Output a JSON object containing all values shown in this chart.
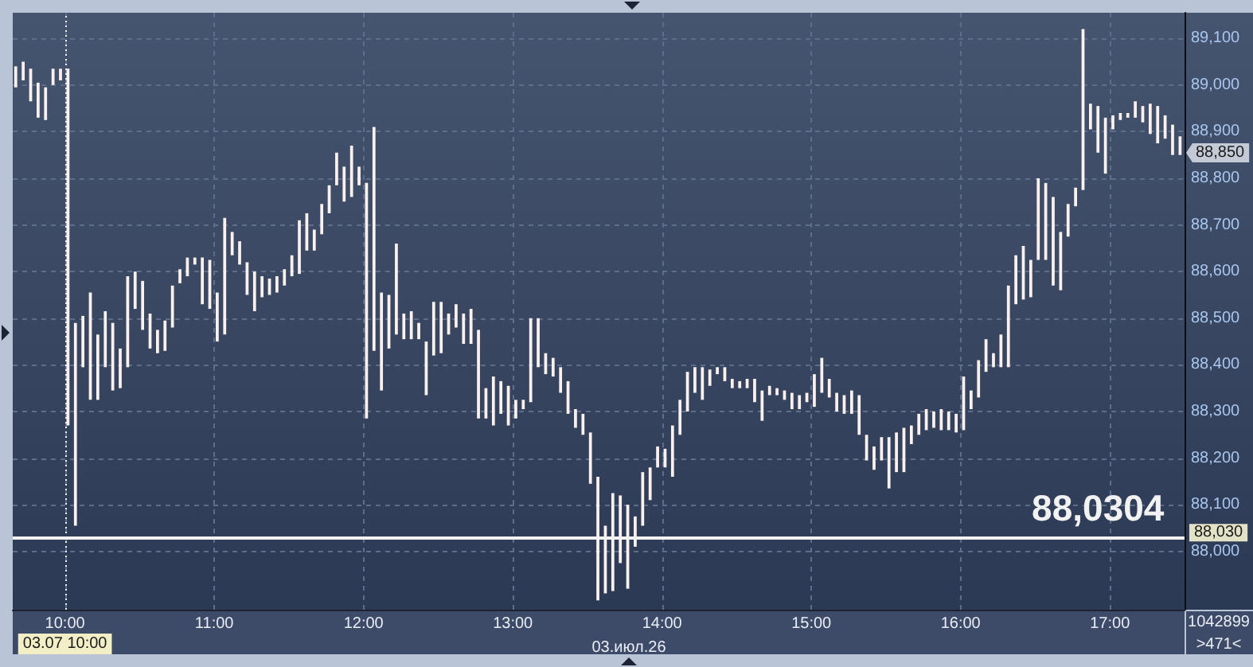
{
  "chart_data": {
    "type": "bar",
    "xlabel": "03.июл.26",
    "x": [
      9.67,
      9.72,
      9.77,
      9.82,
      9.87,
      9.92,
      9.97,
      10.02,
      10.07,
      10.12,
      10.17,
      10.22,
      10.27,
      10.32,
      10.37,
      10.42,
      10.47,
      10.52,
      10.57,
      10.62,
      10.67,
      10.72,
      10.77,
      10.82,
      10.87,
      10.92,
      10.97,
      11.02,
      11.07,
      11.12,
      11.17,
      11.22,
      11.27,
      11.32,
      11.37,
      11.42,
      11.47,
      11.52,
      11.57,
      11.62,
      11.67,
      11.72,
      11.77,
      11.82,
      11.87,
      11.92,
      11.97,
      12.02,
      12.07,
      12.12,
      12.17,
      12.22,
      12.27,
      12.32,
      12.37,
      12.42,
      12.47,
      12.52,
      12.57,
      12.62,
      12.67,
      12.72,
      12.77,
      12.82,
      12.87,
      12.92,
      12.97,
      13.02,
      13.07,
      13.12,
      13.17,
      13.22,
      13.27,
      13.32,
      13.37,
      13.42,
      13.47,
      13.52,
      13.57,
      13.62,
      13.67,
      13.72,
      13.77,
      13.82,
      13.87,
      13.92,
      13.97,
      14.02,
      14.07,
      14.12,
      14.17,
      14.22,
      14.27,
      14.32,
      14.37,
      14.42,
      14.47,
      14.52,
      14.57,
      14.62,
      14.67,
      14.72,
      14.77,
      14.82,
      14.87,
      14.92,
      14.97,
      15.02,
      15.07,
      15.12,
      15.17,
      15.22,
      15.27,
      15.32,
      15.37,
      15.42,
      15.47,
      15.52,
      15.57,
      15.62,
      15.67,
      15.72,
      15.77,
      15.82,
      15.87,
      15.92,
      15.97,
      16.02,
      16.07,
      16.12,
      16.17,
      16.22,
      16.27,
      16.32,
      16.37,
      16.42,
      16.47,
      16.52,
      16.57,
      16.62,
      16.67,
      16.72,
      16.77,
      16.82,
      16.87,
      16.92,
      16.97,
      17.02,
      17.07,
      17.12,
      17.17,
      17.22,
      17.27,
      17.32,
      17.37,
      17.42,
      17.47
    ],
    "base": [
      88995,
      89010,
      88965,
      88930,
      88925,
      89000,
      89010,
      88270,
      88055,
      88395,
      88325,
      88325,
      88395,
      88345,
      88350,
      88395,
      88520,
      88475,
      88435,
      88425,
      88430,
      88480,
      88575,
      88590,
      88615,
      88530,
      88520,
      88450,
      88465,
      88635,
      88615,
      88550,
      88515,
      88545,
      88550,
      88555,
      88570,
      88590,
      88595,
      88645,
      88645,
      88680,
      88725,
      88785,
      88750,
      88760,
      88785,
      88285,
      88430,
      88345,
      88435,
      88465,
      88455,
      88455,
      88455,
      88335,
      88420,
      88425,
      88465,
      88480,
      88445,
      88445,
      88285,
      88285,
      88270,
      88295,
      88270,
      88285,
      88305,
      88320,
      88395,
      88380,
      88375,
      88340,
      88295,
      88265,
      88250,
      88145,
      87895,
      87910,
      87915,
      87975,
      87920,
      88010,
      88055,
      88110,
      88180,
      88180,
      88160,
      88250,
      88300,
      88340,
      88325,
      88355,
      88380,
      88365,
      88350,
      88350,
      88350,
      88320,
      88280,
      88335,
      88335,
      88325,
      88305,
      88305,
      88320,
      88310,
      88340,
      88330,
      88300,
      88295,
      88295,
      88250,
      88195,
      88175,
      88195,
      88135,
      88170,
      88170,
      88230,
      88250,
      88260,
      88265,
      88260,
      88260,
      88255,
      88260,
      88305,
      88330,
      88385,
      88395,
      88395,
      88395,
      88530,
      88540,
      88545,
      88625,
      88625,
      88570,
      88560,
      88675,
      88740,
      88775,
      88905,
      88855,
      88810,
      88905,
      88925,
      88930,
      88930,
      88920,
      88895,
      88875,
      88885,
      88850,
      88850
    ],
    "values": [
      45,
      40,
      70,
      75,
      70,
      35,
      25,
      765,
      435,
      110,
      230,
      140,
      120,
      145,
      85,
      195,
      80,
      105,
      75,
      50,
      65,
      90,
      30,
      40,
      15,
      100,
      105,
      105,
      250,
      50,
      50,
      70,
      85,
      45,
      35,
      35,
      35,
      45,
      115,
      80,
      45,
      65,
      60,
      70,
      75,
      110,
      40,
      505,
      480,
      210,
      115,
      195,
      55,
      60,
      35,
      115,
      115,
      110,
      45,
      50,
      65,
      75,
      190,
      65,
      105,
      70,
      85,
      40,
      20,
      180,
      105,
      45,
      40,
      55,
      70,
      40,
      45,
      110,
      265,
      145,
      210,
      145,
      180,
      65,
      115,
      70,
      45,
      40,
      110,
      75,
      85,
      55,
      70,
      35,
      15,
      30,
      20,
      15,
      20,
      50,
      65,
      20,
      15,
      20,
      35,
      30,
      20,
      70,
      75,
      40,
      40,
      40,
      50,
      85,
      55,
      50,
      50,
      110,
      85,
      95,
      40,
      45,
      45,
      35,
      45,
      40,
      40,
      115,
      40,
      80,
      70,
      30,
      70,
      175,
      105,
      115,
      80,
      175,
      165,
      190,
      125,
      70,
      40,
      345,
      55,
      100,
      120,
      30,
      15,
      10,
      35,
      35,
      65,
      80,
      50,
      65,
      40
    ],
    "color": "#fdf1ee",
    "xlim": [
      9.65,
      17.5
    ],
    "xticks": [
      {
        "value": 10,
        "label": "10:00"
      },
      {
        "value": 11,
        "label": "11:00"
      },
      {
        "value": 12,
        "label": "12:00"
      },
      {
        "value": 13,
        "label": "13:00"
      },
      {
        "value": 14,
        "label": "14:00"
      },
      {
        "value": 15,
        "label": "15:00"
      },
      {
        "value": 16,
        "label": "16:00"
      },
      {
        "value": 17,
        "label": "17:00"
      }
    ],
    "ylim": [
      87875,
      89155
    ],
    "yticks": [
      {
        "value": 88000,
        "label": "88,000"
      },
      {
        "value": 88100,
        "label": "88,100"
      },
      {
        "value": 88200,
        "label": "88,200"
      },
      {
        "value": 88300,
        "label": "88,300"
      },
      {
        "value": 88400,
        "label": "88,400"
      },
      {
        "value": 88500,
        "label": "88,500"
      },
      {
        "value": 88600,
        "label": "88,600"
      },
      {
        "value": 88700,
        "label": "88,700"
      },
      {
        "value": 88800,
        "label": "88,800"
      },
      {
        "value": 88900,
        "label": "88,900"
      },
      {
        "value": 89000,
        "label": "89,000"
      },
      {
        "value": 89100,
        "label": "89,100"
      }
    ],
    "grid": true,
    "ref_lines": [
      {
        "axis": "y",
        "value": 88030,
        "label": "88,030",
        "color": "#f2f2f2",
        "line_style": "solid"
      },
      {
        "axis": "x",
        "value": 10,
        "label": "03.07 10:00",
        "color": "#f2f2f2",
        "line_style": "dotted"
      }
    ],
    "annotations": [
      "88,850",
      "1042899",
      ">471<",
      {
        "text": "88,0304",
        "x": 16.92,
        "y": 88030
      }
    ]
  }
}
